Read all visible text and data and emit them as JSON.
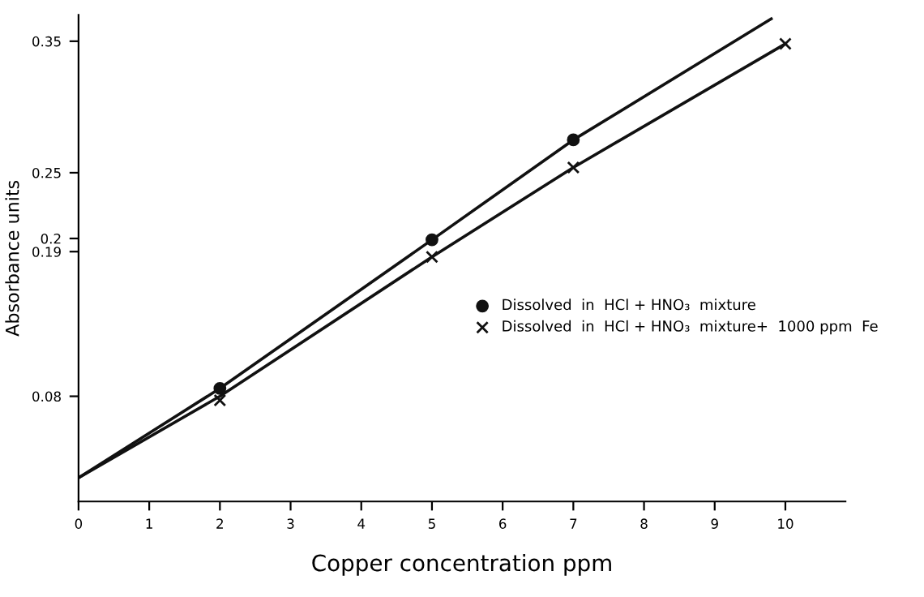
{
  "chart_data": {
    "type": "line",
    "xlabel": "Copper concentration ppm",
    "ylabel": "Absorbance units",
    "xlim": [
      0,
      10.85
    ],
    "xticks": [
      0,
      1,
      2,
      3,
      4,
      5,
      6,
      7,
      8,
      9,
      10
    ],
    "ylim": [
      0,
      0.37
    ],
    "yticks": [
      0.08,
      0.19,
      0.2,
      0.25,
      0.35
    ],
    "grid": false,
    "legend": "right",
    "series": [
      {
        "color": "#111111",
        "marker": "none",
        "x": [
          0,
          2,
          5,
          7,
          9.8
        ],
        "values": [
          0.018,
          0.086,
          0.199,
          0.275,
          0.367
        ]
      },
      {
        "color": "#111111",
        "marker": "none",
        "x": [
          0,
          2,
          5,
          7,
          10
        ],
        "values": [
          0.018,
          0.08,
          0.186,
          0.254,
          0.348
        ]
      },
      {
        "type": "scatter",
        "name": "Dissolved  in  HCl + HNO₃  mixture",
        "color": "#111111",
        "marker": "circle",
        "x": [
          2,
          5,
          7
        ],
        "values": [
          0.086,
          0.199,
          0.275
        ]
      },
      {
        "type": "scatter",
        "name": "Dissolved  in  HCl + HNO₃  mixture+  1000 ppm  Fe",
        "color": "#111111",
        "marker": "cross",
        "x": [
          2,
          5,
          7,
          10
        ],
        "values": [
          0.077,
          0.186,
          0.254,
          0.348
        ]
      }
    ]
  }
}
